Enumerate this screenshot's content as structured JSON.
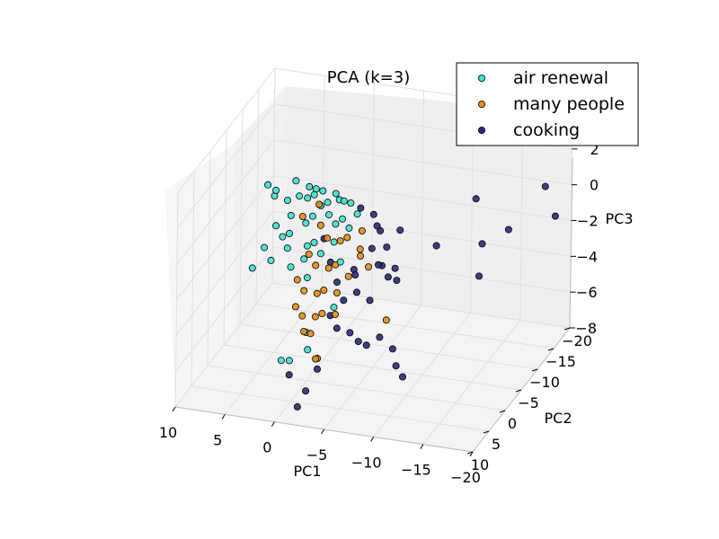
{
  "chart_data": {
    "type": "scatter",
    "title": "PCA (k=3)",
    "xlabel": "PC1",
    "ylabel": "PC2",
    "zlabel": "PC3",
    "xlim": [
      -20,
      10
    ],
    "ylim": [
      -20,
      10
    ],
    "zlim": [
      -8,
      4
    ],
    "x_ticks": [
      10,
      5,
      0,
      -5,
      -10,
      -15,
      -20
    ],
    "y_ticks": [
      -20,
      -15,
      -10,
      -5,
      0,
      5,
      10
    ],
    "z_ticks": [
      4,
      2,
      0,
      -2,
      -4,
      -6,
      -8
    ],
    "x_tick_labels": [
      "10",
      "5",
      "0",
      "−5",
      "−10",
      "−15",
      "−20"
    ],
    "y_tick_labels": [
      "−20",
      "−15",
      "−10",
      "−5",
      "0",
      "5",
      "10"
    ],
    "z_tick_labels": [
      "4",
      "2",
      "0",
      "−2",
      "−4",
      "−6",
      "−8"
    ],
    "grid": true,
    "legend_position": "top-right",
    "series": [
      {
        "name": "air renewal",
        "color": "#40e0d0",
        "points": [
          [
            8.0,
            -12,
            -0.5
          ],
          [
            7.5,
            -13,
            -1.0
          ],
          [
            7.0,
            -11,
            -0.8
          ],
          [
            6.0,
            -12,
            -1.2
          ],
          [
            5.5,
            -13,
            -0.3
          ],
          [
            5.0,
            -10,
            -1.5
          ],
          [
            4.5,
            -11,
            -0.6
          ],
          [
            4.0,
            -12,
            -0.9
          ],
          [
            3.5,
            -10,
            -1.8
          ],
          [
            3.0,
            -11,
            -0.4
          ],
          [
            2.5,
            -9,
            -1.1
          ],
          [
            2.0,
            -10,
            -0.7
          ],
          [
            1.5,
            -11,
            -1.4
          ],
          [
            1.0,
            -9,
            -0.2
          ],
          [
            0.5,
            -10,
            -1.6
          ],
          [
            0.0,
            -11,
            -0.5
          ],
          [
            -0.5,
            -9,
            -1.0
          ],
          [
            -1.0,
            -10,
            -0.3
          ],
          [
            -1.5,
            -8,
            -1.2
          ],
          [
            -2.0,
            -9,
            -0.6
          ],
          [
            6.5,
            -10,
            -2.2
          ],
          [
            5.5,
            -9,
            -2.5
          ],
          [
            4.5,
            -8,
            -2.0
          ],
          [
            3.0,
            -9,
            -2.8
          ],
          [
            2.0,
            -8,
            -2.3
          ],
          [
            1.0,
            -7,
            -2.6
          ],
          [
            0.0,
            -8,
            -2.1
          ],
          [
            -1.0,
            -7,
            -2.9
          ],
          [
            7.0,
            -8,
            -3.0
          ],
          [
            6.0,
            -7,
            -3.4
          ],
          [
            5.0,
            -9,
            -3.1
          ],
          [
            4.0,
            -7,
            -3.6
          ],
          [
            3.0,
            -8,
            -3.3
          ],
          [
            2.0,
            -6,
            -3.8
          ],
          [
            8.5,
            -9,
            -4.5
          ],
          [
            -2.0,
            -2,
            -4.2
          ],
          [
            -1.0,
            3,
            -5.5
          ],
          [
            0.5,
            4,
            -6.0
          ],
          [
            1.0,
            5,
            -5.8
          ],
          [
            -0.5,
            2,
            -4.8
          ],
          [
            2.5,
            -10,
            0.2
          ],
          [
            1.5,
            -9,
            0.4
          ],
          [
            0.5,
            -10,
            0.1
          ],
          [
            -0.5,
            -8,
            0.3
          ],
          [
            3.5,
            -11,
            0.0
          ]
        ]
      },
      {
        "name": "many people",
        "color": "#e38d1c",
        "points": [
          [
            2.0,
            -10,
            -1.8
          ],
          [
            1.0,
            -9,
            -2.2
          ],
          [
            0.0,
            -10,
            -2.5
          ],
          [
            -1.0,
            -9,
            -2.0
          ],
          [
            -2.0,
            -10,
            -2.8
          ],
          [
            2.5,
            -8,
            -3.0
          ],
          [
            1.5,
            -7,
            -3.3
          ],
          [
            0.5,
            -8,
            -3.6
          ],
          [
            -0.5,
            -7,
            -3.1
          ],
          [
            -1.5,
            -8,
            -3.9
          ],
          [
            3.0,
            -6,
            -4.0
          ],
          [
            2.0,
            -5,
            -4.3
          ],
          [
            1.0,
            -6,
            -4.6
          ],
          [
            0.0,
            -5,
            -4.1
          ],
          [
            -1.0,
            -6,
            -4.4
          ],
          [
            2.5,
            -4,
            -5.0
          ],
          [
            1.5,
            -3,
            -5.2
          ],
          [
            0.5,
            -4,
            -5.4
          ],
          [
            -0.5,
            -3,
            -4.9
          ],
          [
            -1.5,
            -4,
            -5.1
          ],
          [
            3.5,
            -9,
            -1.2
          ],
          [
            2.5,
            -11,
            -0.9
          ],
          [
            -2.5,
            -9,
            -1.5
          ],
          [
            -3.0,
            -7,
            -2.4
          ],
          [
            -3.5,
            -8,
            -3.2
          ],
          [
            1.0,
            -2,
            -5.8
          ],
          [
            0.0,
            -1,
            -5.6
          ],
          [
            -6.0,
            -6,
            -5.5
          ],
          [
            -1.5,
            2,
            -6.2
          ],
          [
            -2.0,
            3,
            -5.9
          ]
        ]
      },
      {
        "name": "cooking",
        "color": "#2a2a78",
        "points": [
          [
            -2.0,
            -10,
            -0.5
          ],
          [
            -3.0,
            -11,
            -1.0
          ],
          [
            -4.0,
            -10,
            -1.6
          ],
          [
            -3.5,
            -9,
            -2.4
          ],
          [
            -4.5,
            -8,
            -3.0
          ],
          [
            -2.5,
            -7,
            -3.5
          ],
          [
            -3.0,
            -6,
            -4.2
          ],
          [
            -4.0,
            -7,
            -4.8
          ],
          [
            -2.0,
            -5,
            -4.5
          ],
          [
            -1.0,
            -6,
            -3.8
          ],
          [
            0.0,
            -7,
            -3.0
          ],
          [
            1.0,
            -8,
            -2.0
          ],
          [
            -5.0,
            -9,
            -2.2
          ],
          [
            -5.5,
            -8,
            -3.6
          ],
          [
            -6.0,
            -10,
            -1.4
          ],
          [
            -1.0,
            -4,
            -5.2
          ],
          [
            -2.0,
            -3,
            -5.6
          ],
          [
            -3.0,
            -4,
            -6.0
          ],
          [
            -4.5,
            -2,
            -5.9
          ],
          [
            -5.0,
            -3,
            -6.3
          ],
          [
            -6.0,
            -4,
            -6.0
          ],
          [
            -7.0,
            -5,
            -6.8
          ],
          [
            -8.0,
            -3,
            -7.2
          ],
          [
            -9.0,
            -2,
            -7.5
          ],
          [
            -2.0,
            3,
            -6.5
          ],
          [
            0.5,
            4,
            -6.8
          ],
          [
            -1.5,
            5,
            -7.3
          ],
          [
            -1.0,
            6,
            -8.0
          ],
          [
            -10.0,
            -9,
            -1.7
          ],
          [
            -12.0,
            -15,
            -0.3
          ],
          [
            -13.0,
            -14,
            -2.5
          ],
          [
            -15.0,
            -16,
            -2.0
          ],
          [
            -14.0,
            -10,
            -3.3
          ],
          [
            -18.0,
            -18,
            0.2
          ],
          [
            -20.0,
            -15,
            -0.6
          ],
          [
            -7.0,
            -6,
            -3.2
          ],
          [
            -6.5,
            -7,
            -2.8
          ],
          [
            -5.5,
            -6,
            -2.5
          ],
          [
            -3.0,
            -5,
            -2.7
          ],
          [
            -4.0,
            -9,
            -1.1
          ]
        ]
      }
    ]
  }
}
